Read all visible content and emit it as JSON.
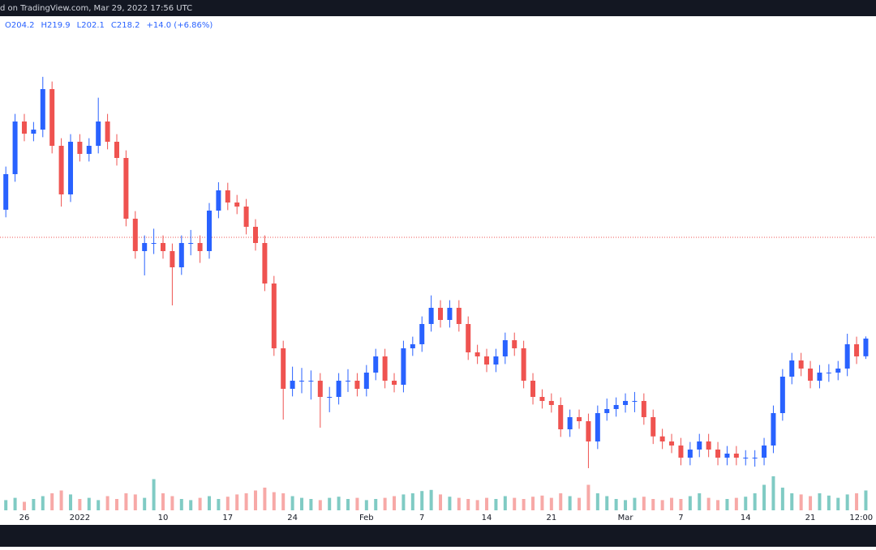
{
  "chart_data": {
    "type": "candlestick",
    "source_text": "d on TradingView.com, Mar 29, 2022 17:56 UTC",
    "ohlc_labels": [
      "O204.2",
      "H219.9",
      "L202.1",
      "C218.2",
      "+14.0 (+6.86%)"
    ],
    "open": [
      320.0,
      348.1,
      389.7,
      380.1,
      383.3,
      415.3,
      370.5,
      332.1,
      373.7,
      364.1,
      370.5,
      389.7,
      373.7,
      360.9,
      312.9,
      287.3,
      293.7,
      293.7,
      287.3,
      274.5,
      293.7,
      293.7,
      287.3,
      319.3,
      335.3,
      325.7,
      322.5,
      306.5,
      293.7,
      261.7,
      210.5,
      178.5,
      184.9,
      184.9,
      184.9,
      172.1,
      172.1,
      184.9,
      184.9,
      178.5,
      191.3,
      204.1,
      184.9,
      181.7,
      210.5,
      213.7,
      229.7,
      242.5,
      232.9,
      242.5,
      229.7,
      207.3,
      204.1,
      197.7,
      204.1,
      216.9,
      210.5,
      184.9,
      172.1,
      168.9,
      165.7,
      146.5,
      156.1,
      152.9,
      136.9,
      159.3,
      162.5,
      165.7,
      168.9,
      168.9,
      156.1,
      140.9,
      136.9,
      133.7,
      124.1,
      130.5,
      136.9,
      130.5,
      124.1,
      127.3,
      124.1,
      124.1,
      124.1,
      133.7,
      159.3,
      188.1,
      200.9,
      194.5,
      184.9,
      191.3,
      191.3,
      194.5,
      213.7,
      204.2
    ],
    "high": [
      354.1,
      395.7,
      395.7,
      389.3,
      425.0,
      421.3,
      376.5,
      379.7,
      379.7,
      376.5,
      408.5,
      395.7,
      379.7,
      366.9,
      318.9,
      299.7,
      305.0,
      299.7,
      293.3,
      299.7,
      304.0,
      299.7,
      325.3,
      341.7,
      341.3,
      331.7,
      328.5,
      312.5,
      299.7,
      267.7,
      216.5,
      196.0,
      195.0,
      193.0,
      190.9,
      180.0,
      190.9,
      194.0,
      190.9,
      197.3,
      210.1,
      210.1,
      190.9,
      216.5,
      219.7,
      235.7,
      252.3,
      248.5,
      248.5,
      248.5,
      235.7,
      213.3,
      210.1,
      210.1,
      222.9,
      222.9,
      216.5,
      190.9,
      178.1,
      174.9,
      171.7,
      162.1,
      162.1,
      158.9,
      165.3,
      170.8,
      171.7,
      174.9,
      176.0,
      174.9,
      162.1,
      146.9,
      142.9,
      139.7,
      136.5,
      142.9,
      142.9,
      136.5,
      133.3,
      133.3,
      130.0,
      130.0,
      139.7,
      165.3,
      194.1,
      206.9,
      206.9,
      200.5,
      197.3,
      198.0,
      200.5,
      222.0,
      219.7,
      219.9
    ],
    "low": [
      314.0,
      342.1,
      374.1,
      374.1,
      377.3,
      364.5,
      322.5,
      326.1,
      358.1,
      358.1,
      364.5,
      367.7,
      354.9,
      306.9,
      281.3,
      268.1,
      285.0,
      281.3,
      244.4,
      268.5,
      284.0,
      278.0,
      281.3,
      313.3,
      319.7,
      316.5,
      300.5,
      287.7,
      255.7,
      204.5,
      154.2,
      172.5,
      175.0,
      170.0,
      147.8,
      160.0,
      166.1,
      176.0,
      172.5,
      172.5,
      185.3,
      178.9,
      175.7,
      175.7,
      204.5,
      207.7,
      223.7,
      226.9,
      226.9,
      223.7,
      201.3,
      198.1,
      191.7,
      191.7,
      198.1,
      204.5,
      178.9,
      166.1,
      162.9,
      159.7,
      140.5,
      140.5,
      146.9,
      115.8,
      130.9,
      153.3,
      156.5,
      159.7,
      160.0,
      150.1,
      134.9,
      130.9,
      127.7,
      118.1,
      118.1,
      124.5,
      124.5,
      118.1,
      118.1,
      118.1,
      118.0,
      117.0,
      118.1,
      127.7,
      153.3,
      182.1,
      188.5,
      178.9,
      178.9,
      184.0,
      185.3,
      188.5,
      198.1,
      202.1
    ],
    "close": [
      348.1,
      389.7,
      380.1,
      383.3,
      415.3,
      370.5,
      332.1,
      373.7,
      364.1,
      370.5,
      389.7,
      373.7,
      360.9,
      312.9,
      287.3,
      293.7,
      293.7,
      287.3,
      274.5,
      293.7,
      293.7,
      287.3,
      319.3,
      335.3,
      325.7,
      322.5,
      306.5,
      293.7,
      261.7,
      210.5,
      178.5,
      184.9,
      184.9,
      184.9,
      172.1,
      172.1,
      184.9,
      184.9,
      178.5,
      191.3,
      204.1,
      184.9,
      181.7,
      210.5,
      213.7,
      229.7,
      242.5,
      232.9,
      242.5,
      229.7,
      207.3,
      204.1,
      197.7,
      204.1,
      216.9,
      210.5,
      184.9,
      172.1,
      168.9,
      165.7,
      146.5,
      156.1,
      152.9,
      136.9,
      159.3,
      162.5,
      165.7,
      168.9,
      168.9,
      156.1,
      140.9,
      136.9,
      133.7,
      124.1,
      130.5,
      136.9,
      130.5,
      124.1,
      127.3,
      124.1,
      124.1,
      124.1,
      133.7,
      159.3,
      188.1,
      200.9,
      194.5,
      184.9,
      191.3,
      191.3,
      194.5,
      213.7,
      204.1,
      218.2
    ],
    "volume": [
      18,
      22,
      15,
      20,
      25,
      30,
      35,
      28,
      20,
      22,
      18,
      25,
      20,
      30,
      28,
      22,
      55,
      30,
      25,
      20,
      18,
      22,
      25,
      20,
      24,
      28,
      30,
      35,
      40,
      32,
      30,
      25,
      22,
      20,
      18,
      22,
      24,
      20,
      22,
      18,
      20,
      22,
      25,
      28,
      30,
      34,
      36,
      28,
      24,
      22,
      20,
      18,
      22,
      20,
      25,
      22,
      20,
      24,
      26,
      22,
      30,
      25,
      22,
      45,
      30,
      25,
      20,
      18,
      22,
      24,
      20,
      18,
      22,
      20,
      25,
      30,
      22,
      18,
      20,
      22,
      24,
      30,
      45,
      60,
      40,
      30,
      28,
      25,
      30,
      26,
      22,
      28,
      30,
      35
    ],
    "up_color": "#2962ff",
    "down_color": "#ef5350",
    "volume_up_color": "#80cbc4",
    "volume_down_color": "#f7a9a7",
    "ref_line": 298.2,
    "ref_line_color": "#ef5350",
    "ylim": [
      82.5,
      472.9
    ],
    "vlim": [
      0,
      100
    ],
    "xlim": [
      -0.63,
      94.1
    ],
    "xticks": [
      {
        "value": 2,
        "label": "26"
      },
      {
        "value": 8,
        "label": "2022"
      },
      {
        "value": 17,
        "label": "10"
      },
      {
        "value": 24,
        "label": "17"
      },
      {
        "value": 31,
        "label": "24"
      },
      {
        "value": 39,
        "label": "Feb"
      },
      {
        "value": 45,
        "label": "7"
      },
      {
        "value": 52,
        "label": "14"
      },
      {
        "value": 59,
        "label": "21"
      },
      {
        "value": 67,
        "label": "Mar"
      },
      {
        "value": 73,
        "label": "7"
      },
      {
        "value": 80,
        "label": "14"
      },
      {
        "value": 87,
        "label": "21"
      },
      {
        "value": 92.5,
        "label": "12:00"
      }
    ]
  }
}
